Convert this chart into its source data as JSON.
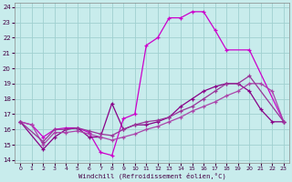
{
  "xlabel": "Windchill (Refroidissement éolien,°C)",
  "bg_color": "#c8ecec",
  "grid_color": "#a0d0d0",
  "xlim": [
    -0.5,
    23.5
  ],
  "ylim": [
    13.8,
    24.3
  ],
  "yticks": [
    14,
    15,
    16,
    17,
    18,
    19,
    20,
    21,
    22,
    23,
    24
  ],
  "xticks": [
    0,
    1,
    2,
    3,
    4,
    5,
    6,
    7,
    8,
    9,
    10,
    11,
    12,
    13,
    14,
    15,
    16,
    17,
    18,
    19,
    20,
    21,
    22,
    23
  ],
  "curve1_x": [
    0,
    1,
    2,
    3,
    4,
    5,
    6,
    7,
    8,
    9,
    10,
    11,
    12,
    13,
    14,
    15,
    16,
    17,
    18,
    20,
    23
  ],
  "curve1_y": [
    16.5,
    16.3,
    15.5,
    16.0,
    16.1,
    16.1,
    15.8,
    14.5,
    14.3,
    16.7,
    17.0,
    21.5,
    22.0,
    23.3,
    23.3,
    23.7,
    23.7,
    22.5,
    21.2,
    21.2,
    16.5
  ],
  "curve2_x": [
    0,
    2,
    3,
    4,
    5,
    6,
    7,
    8,
    9,
    10,
    11,
    12,
    13,
    14,
    15,
    16,
    17,
    18,
    19,
    20,
    21,
    22,
    23
  ],
  "curve2_y": [
    16.5,
    14.7,
    15.5,
    16.0,
    16.1,
    15.5,
    15.5,
    17.7,
    16.0,
    16.3,
    16.3,
    16.5,
    16.8,
    17.5,
    18.0,
    18.5,
    18.8,
    19.0,
    19.0,
    18.5,
    17.3,
    16.5,
    16.5
  ],
  "curve3_x": [
    0,
    1,
    2,
    3,
    4,
    5,
    6,
    7,
    8,
    9,
    10,
    11,
    12,
    13,
    14,
    15,
    16,
    17,
    18,
    19,
    20,
    21,
    22,
    23
  ],
  "curve3_y": [
    16.5,
    16.3,
    15.0,
    15.8,
    15.8,
    15.9,
    15.7,
    15.5,
    15.3,
    15.5,
    15.7,
    16.0,
    16.2,
    16.5,
    16.8,
    17.2,
    17.5,
    17.8,
    18.2,
    18.5,
    19.0,
    19.0,
    18.5,
    16.5
  ],
  "curve4_x": [
    0,
    2,
    3,
    4,
    5,
    6,
    7,
    8,
    9,
    10,
    11,
    12,
    13,
    14,
    15,
    16,
    17,
    18,
    19,
    20,
    23
  ],
  "curve4_y": [
    16.5,
    15.2,
    16.0,
    16.0,
    16.1,
    15.9,
    15.7,
    15.6,
    16.0,
    16.3,
    16.5,
    16.6,
    16.8,
    17.2,
    17.5,
    18.0,
    18.5,
    19.0,
    19.0,
    19.5,
    16.5
  ],
  "color_bright": "#cc00cc",
  "color_dark": "#880088"
}
